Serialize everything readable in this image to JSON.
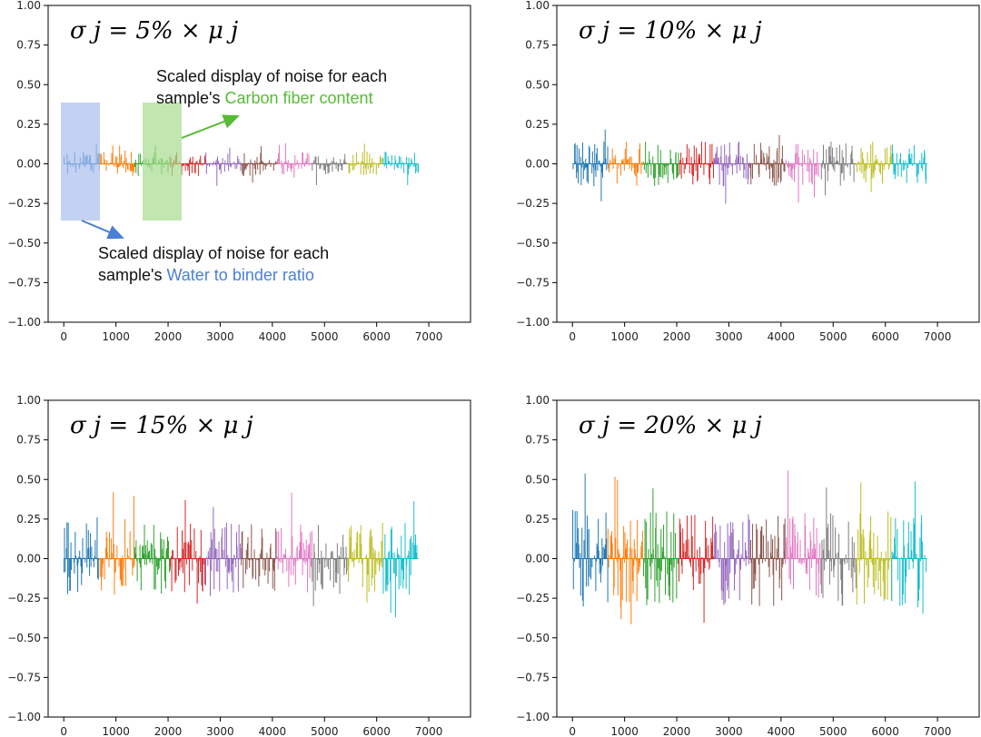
{
  "figure": {
    "annotations": {
      "carbon": {
        "line1": "Scaled display of noise for each",
        "prefix": "sample's ",
        "highlight": "Carbon fiber content",
        "highlight_color": "#55bb33",
        "box_color": "#a6dc8f"
      },
      "water": {
        "line1": "Scaled display of noise for each",
        "prefix": "sample's ",
        "highlight": "Water to binder ratio",
        "highlight_color": "#4a7fd4",
        "box_color": "#a9bdee"
      }
    }
  },
  "chart_data": [
    {
      "type": "bar",
      "title": "σ j = 5% × μ j",
      "xlim": [
        -300,
        7800
      ],
      "ylim": [
        -1.0,
        1.0
      ],
      "xticks": [
        0,
        1000,
        2000,
        3000,
        4000,
        5000,
        6000,
        7000
      ],
      "yticks": [
        -1.0,
        -0.75,
        -0.5,
        -0.25,
        0.0,
        0.25,
        0.5,
        0.75,
        1.0
      ],
      "ytick_labels": [
        "−1.00",
        "−0.75",
        "−0.50",
        "−0.25",
        "0.00",
        "0.25",
        "0.50",
        "0.75",
        "1.00"
      ],
      "samples_per_segment": 680,
      "segment_colors": [
        "#1f77b4",
        "#ff7f0e",
        "#2ca02c",
        "#d62728",
        "#9467bd",
        "#8c564b",
        "#e377c2",
        "#7f7f7f",
        "#bcbd22",
        "#17becf"
      ],
      "approx_amplitude": 0.14
    },
    {
      "type": "bar",
      "title": "σ j = 10% × μ j",
      "xlim": [
        -300,
        7800
      ],
      "ylim": [
        -1.0,
        1.0
      ],
      "xticks": [
        0,
        1000,
        2000,
        3000,
        4000,
        5000,
        6000,
        7000
      ],
      "yticks": [
        -1.0,
        -0.75,
        -0.5,
        -0.25,
        0.0,
        0.25,
        0.5,
        0.75,
        1.0
      ],
      "ytick_labels": [
        "−1.00",
        "−0.75",
        "−0.50",
        "−0.25",
        "0.00",
        "0.25",
        "0.50",
        "0.75",
        "1.00"
      ],
      "samples_per_segment": 680,
      "segment_colors": [
        "#1f77b4",
        "#ff7f0e",
        "#2ca02c",
        "#d62728",
        "#9467bd",
        "#8c564b",
        "#e377c2",
        "#7f7f7f",
        "#bcbd22",
        "#17becf"
      ],
      "approx_amplitude": 0.26
    },
    {
      "type": "bar",
      "title": "σ j = 15% × μ j",
      "xlim": [
        -300,
        7800
      ],
      "ylim": [
        -1.0,
        1.0
      ],
      "xticks": [
        0,
        1000,
        2000,
        3000,
        4000,
        5000,
        6000,
        7000
      ],
      "yticks": [
        -1.0,
        -0.75,
        -0.5,
        -0.25,
        0.0,
        0.25,
        0.5,
        0.75,
        1.0
      ],
      "ytick_labels": [
        "−1.00",
        "−0.75",
        "−0.50",
        "−0.25",
        "0.00",
        "0.25",
        "0.50",
        "0.75",
        "1.00"
      ],
      "samples_per_segment": 680,
      "segment_colors": [
        "#1f77b4",
        "#ff7f0e",
        "#2ca02c",
        "#d62728",
        "#9467bd",
        "#8c564b",
        "#e377c2",
        "#7f7f7f",
        "#bcbd22",
        "#17becf"
      ],
      "approx_amplitude": 0.42
    },
    {
      "type": "bar",
      "title": "σ j = 20% × μ j",
      "xlim": [
        -300,
        7800
      ],
      "ylim": [
        -1.0,
        1.0
      ],
      "xticks": [
        0,
        1000,
        2000,
        3000,
        4000,
        5000,
        6000,
        7000
      ],
      "yticks": [
        -1.0,
        -0.75,
        -0.5,
        -0.25,
        0.0,
        0.25,
        0.5,
        0.75,
        1.0
      ],
      "ytick_labels": [
        "−1.00",
        "−0.75",
        "−0.50",
        "−0.25",
        "0.00",
        "0.25",
        "0.50",
        "0.75",
        "1.00"
      ],
      "samples_per_segment": 680,
      "segment_colors": [
        "#1f77b4",
        "#ff7f0e",
        "#2ca02c",
        "#d62728",
        "#9467bd",
        "#8c564b",
        "#e377c2",
        "#7f7f7f",
        "#bcbd22",
        "#17becf"
      ],
      "approx_amplitude": 0.56
    }
  ]
}
